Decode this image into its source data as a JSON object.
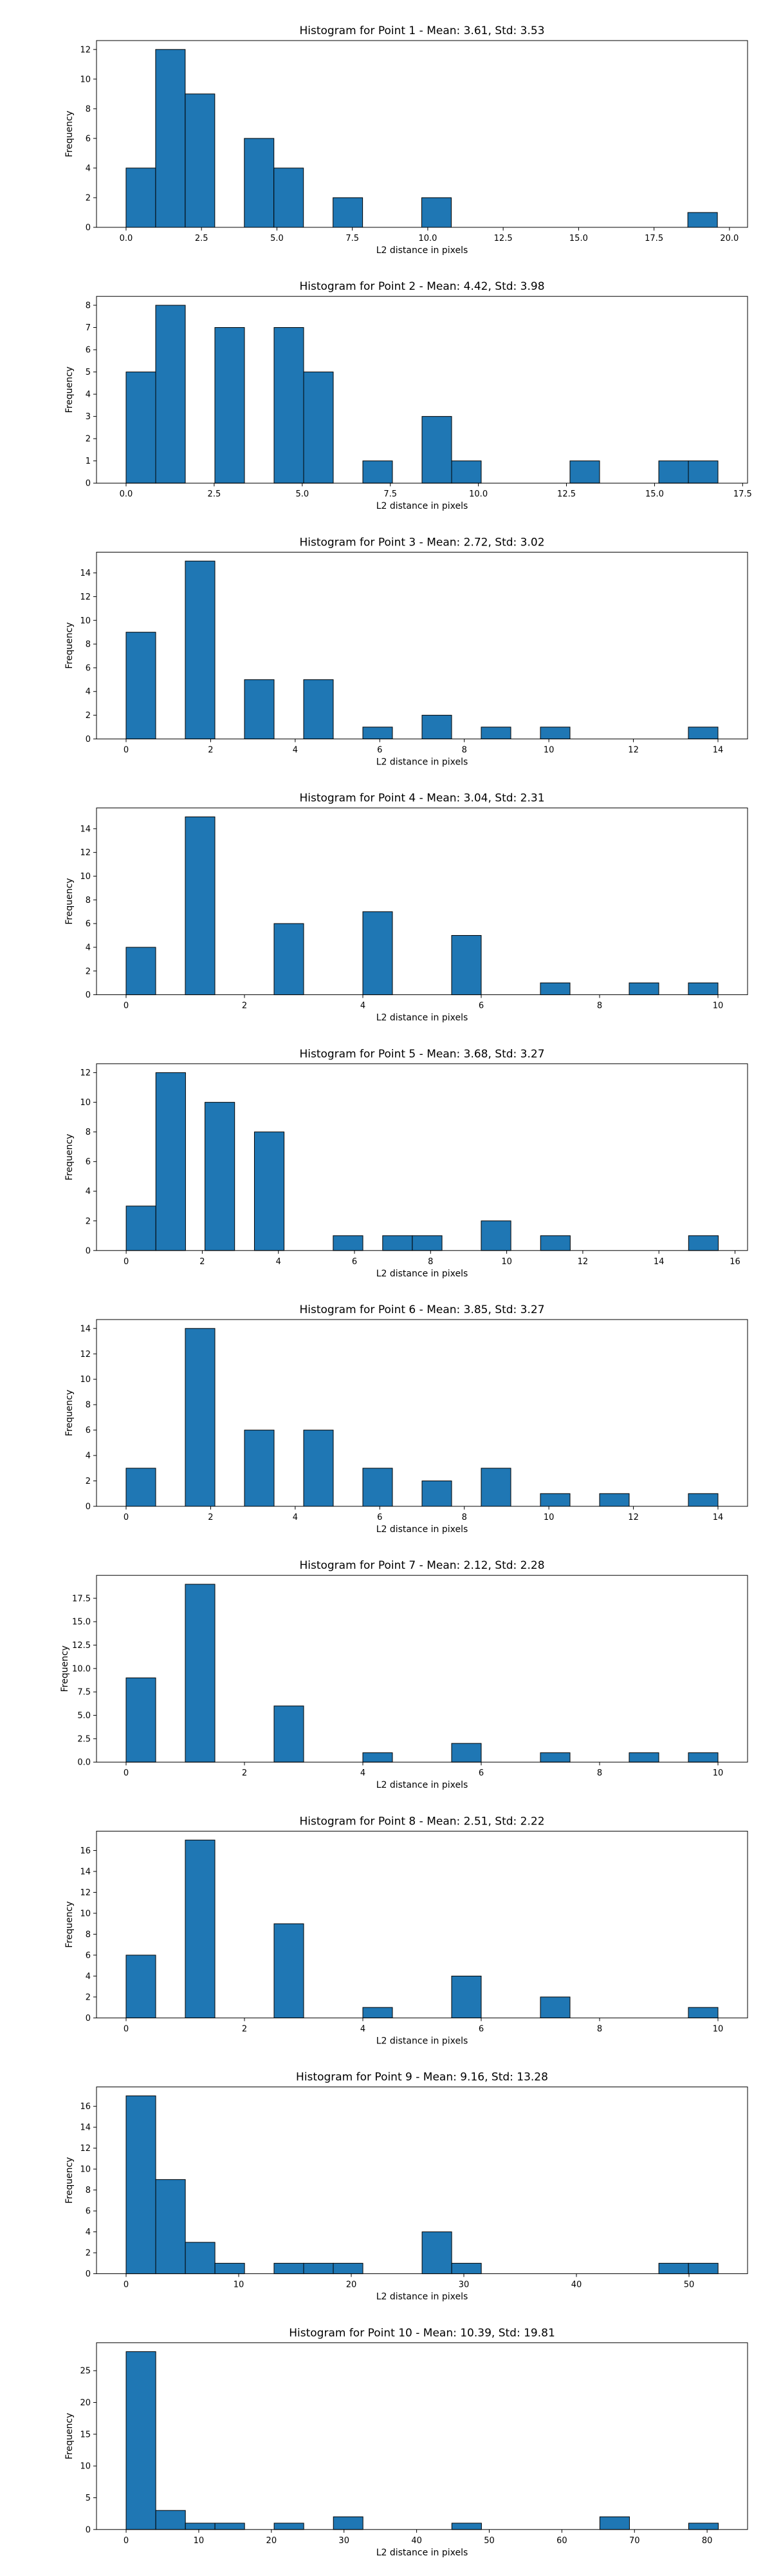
{
  "chart_data": [
    {
      "type": "bar",
      "title": "Histogram for Point 1 - Mean: 3.61, Std: 3.53",
      "xlabel": "L2 distance in pixels",
      "ylabel": "Frequency",
      "xlim": [
        -0.98,
        20.6
      ],
      "ylim": [
        0,
        12.6
      ],
      "xticks": [
        0.0,
        2.5,
        5.0,
        7.5,
        10.0,
        12.5,
        15.0,
        17.5,
        20.0
      ],
      "xtick_labels": [
        "0.0",
        "2.5",
        "5.0",
        "7.5",
        "10.0",
        "12.5",
        "15.0",
        "17.5",
        "20.0"
      ],
      "yticks": [
        0,
        2,
        4,
        6,
        8,
        10,
        12
      ],
      "ytick_labels": [
        "0",
        "2",
        "4",
        "6",
        "8",
        "10",
        "12"
      ],
      "bins": [
        [
          0.0,
          0.98,
          4
        ],
        [
          0.98,
          1.96,
          12
        ],
        [
          1.96,
          2.94,
          9
        ],
        [
          3.92,
          4.9,
          6
        ],
        [
          4.9,
          5.88,
          4
        ],
        [
          6.86,
          7.84,
          2
        ],
        [
          9.8,
          10.78,
          2
        ],
        [
          18.62,
          19.6,
          1
        ]
      ]
    },
    {
      "type": "bar",
      "title": "Histogram for Point 2 - Mean: 4.42, Std: 3.98",
      "xlabel": "L2 distance in pixels",
      "ylabel": "Frequency",
      "xlim": [
        -0.84,
        17.64
      ],
      "ylim": [
        0,
        8.4
      ],
      "xticks": [
        0.0,
        2.5,
        5.0,
        7.5,
        10.0,
        12.5,
        15.0,
        17.5
      ],
      "xtick_labels": [
        "0.0",
        "2.5",
        "5.0",
        "7.5",
        "10.0",
        "12.5",
        "15.0",
        "17.5"
      ],
      "yticks": [
        0,
        1,
        2,
        3,
        4,
        5,
        6,
        7,
        8
      ],
      "ytick_labels": [
        "0",
        "1",
        "2",
        "3",
        "4",
        "5",
        "6",
        "7",
        "8"
      ],
      "bins": [
        [
          0.0,
          0.84,
          5
        ],
        [
          0.84,
          1.68,
          8
        ],
        [
          2.52,
          3.36,
          7
        ],
        [
          4.2,
          5.04,
          7
        ],
        [
          5.04,
          5.88,
          5
        ],
        [
          6.72,
          7.56,
          1
        ],
        [
          8.4,
          9.24,
          3
        ],
        [
          9.24,
          10.08,
          1
        ],
        [
          12.6,
          13.44,
          1
        ],
        [
          15.12,
          15.96,
          1
        ],
        [
          15.96,
          16.8,
          1
        ]
      ]
    },
    {
      "type": "bar",
      "title": "Histogram for Point 3 - Mean: 2.72, Std: 3.02",
      "xlabel": "L2 distance in pixels",
      "ylabel": "Frequency",
      "xlim": [
        -0.7,
        14.7
      ],
      "ylim": [
        0,
        15.75
      ],
      "xticks": [
        0,
        2,
        4,
        6,
        8,
        10,
        12,
        14
      ],
      "xtick_labels": [
        "0",
        "2",
        "4",
        "6",
        "8",
        "10",
        "12",
        "14"
      ],
      "yticks": [
        0,
        2,
        4,
        6,
        8,
        10,
        12,
        14
      ],
      "ytick_labels": [
        "0",
        "2",
        "4",
        "6",
        "8",
        "10",
        "12",
        "14"
      ],
      "bins": [
        [
          0.0,
          0.7,
          9
        ],
        [
          1.4,
          2.1,
          15
        ],
        [
          2.8,
          3.5,
          5
        ],
        [
          4.2,
          4.9,
          5
        ],
        [
          5.6,
          6.3,
          1
        ],
        [
          7.0,
          7.7,
          2
        ],
        [
          8.4,
          9.1,
          1
        ],
        [
          9.8,
          10.5,
          1
        ],
        [
          13.3,
          14.0,
          1
        ]
      ]
    },
    {
      "type": "bar",
      "title": "Histogram for Point 4 - Mean: 3.04, Std: 2.31",
      "xlabel": "L2 distance in pixels",
      "ylabel": "Frequency",
      "xlim": [
        -0.5,
        10.5
      ],
      "ylim": [
        0,
        15.75
      ],
      "xticks": [
        0,
        2,
        4,
        6,
        8,
        10
      ],
      "xtick_labels": [
        "0",
        "2",
        "4",
        "6",
        "8",
        "10"
      ],
      "yticks": [
        0,
        2,
        4,
        6,
        8,
        10,
        12,
        14
      ],
      "ytick_labels": [
        "0",
        "2",
        "4",
        "6",
        "8",
        "10",
        "12",
        "14"
      ],
      "bins": [
        [
          0.0,
          0.5,
          4
        ],
        [
          1.0,
          1.5,
          15
        ],
        [
          2.5,
          3.0,
          6
        ],
        [
          4.0,
          4.5,
          7
        ],
        [
          5.5,
          6.0,
          5
        ],
        [
          7.0,
          7.5,
          1
        ],
        [
          8.5,
          9.0,
          1
        ],
        [
          9.5,
          10.0,
          1
        ]
      ]
    },
    {
      "type": "bar",
      "title": "Histogram for Point 5 - Mean: 3.68, Std: 3.27",
      "xlabel": "L2 distance in pixels",
      "ylabel": "Frequency",
      "xlim": [
        -0.78,
        16.33
      ],
      "ylim": [
        0,
        12.6
      ],
      "xticks": [
        0,
        2,
        4,
        6,
        8,
        10,
        12,
        14,
        16
      ],
      "xtick_labels": [
        "0",
        "2",
        "4",
        "6",
        "8",
        "10",
        "12",
        "14",
        "16"
      ],
      "yticks": [
        0,
        2,
        4,
        6,
        8,
        10,
        12
      ],
      "ytick_labels": [
        "0",
        "2",
        "4",
        "6",
        "8",
        "10",
        "12"
      ],
      "bins": [
        [
          0.0,
          0.78,
          3
        ],
        [
          0.78,
          1.56,
          12
        ],
        [
          2.07,
          2.85,
          10
        ],
        [
          3.37,
          4.15,
          8
        ],
        [
          5.44,
          6.22,
          1
        ],
        [
          6.74,
          7.52,
          1
        ],
        [
          7.52,
          8.3,
          1
        ],
        [
          9.33,
          10.11,
          2
        ],
        [
          10.89,
          11.67,
          1
        ],
        [
          14.78,
          15.56,
          1
        ]
      ]
    },
    {
      "type": "bar",
      "title": "Histogram for Point 6 - Mean: 3.85, Std: 3.27",
      "xlabel": "L2 distance in pixels",
      "ylabel": "Frequency",
      "xlim": [
        -0.7,
        14.7
      ],
      "ylim": [
        0,
        14.7
      ],
      "xticks": [
        0,
        2,
        4,
        6,
        8,
        10,
        12,
        14
      ],
      "xtick_labels": [
        "0",
        "2",
        "4",
        "6",
        "8",
        "10",
        "12",
        "14"
      ],
      "yticks": [
        0,
        2,
        4,
        6,
        8,
        10,
        12,
        14
      ],
      "ytick_labels": [
        "0",
        "2",
        "4",
        "6",
        "8",
        "10",
        "12",
        "14"
      ],
      "bins": [
        [
          0.0,
          0.7,
          3
        ],
        [
          1.4,
          2.1,
          14
        ],
        [
          2.8,
          3.5,
          6
        ],
        [
          4.2,
          4.9,
          6
        ],
        [
          5.6,
          6.3,
          3
        ],
        [
          7.0,
          7.7,
          2
        ],
        [
          8.4,
          9.1,
          3
        ],
        [
          9.8,
          10.5,
          1
        ],
        [
          11.2,
          11.9,
          1
        ],
        [
          13.3,
          14.0,
          1
        ]
      ]
    },
    {
      "type": "bar",
      "title": "Histogram for Point 7 - Mean: 2.12, Std: 2.28",
      "xlabel": "L2 distance in pixels",
      "ylabel": "Frequency",
      "xlim": [
        -0.5,
        10.5
      ],
      "ylim": [
        0,
        19.95
      ],
      "xticks": [
        0,
        2,
        4,
        6,
        8,
        10
      ],
      "xtick_labels": [
        "0",
        "2",
        "4",
        "6",
        "8",
        "10"
      ],
      "yticks": [
        0,
        2.5,
        5,
        7.5,
        10,
        12.5,
        15,
        17.5
      ],
      "ytick_labels": [
        "0.0",
        "2.5",
        "5.0",
        "7.5",
        "10.0",
        "12.5",
        "15.0",
        "17.5"
      ],
      "bins": [
        [
          0.0,
          0.5,
          9
        ],
        [
          1.0,
          1.5,
          19
        ],
        [
          2.5,
          3.0,
          6
        ],
        [
          4.0,
          4.5,
          1
        ],
        [
          5.5,
          6.0,
          2
        ],
        [
          7.0,
          7.5,
          1
        ],
        [
          8.5,
          9.0,
          1
        ],
        [
          9.5,
          10.0,
          1
        ]
      ]
    },
    {
      "type": "bar",
      "title": "Histogram for Point 8 - Mean: 2.51, Std: 2.22",
      "xlabel": "L2 distance in pixels",
      "ylabel": "Frequency",
      "xlim": [
        -0.5,
        10.5
      ],
      "ylim": [
        0,
        17.85
      ],
      "xticks": [
        0,
        2,
        4,
        6,
        8,
        10
      ],
      "xtick_labels": [
        "0",
        "2",
        "4",
        "6",
        "8",
        "10"
      ],
      "yticks": [
        0,
        2,
        4,
        6,
        8,
        10,
        12,
        14,
        16
      ],
      "ytick_labels": [
        "0",
        "2",
        "4",
        "6",
        "8",
        "10",
        "12",
        "14",
        "16"
      ],
      "bins": [
        [
          0.0,
          0.5,
          6
        ],
        [
          1.0,
          1.5,
          17
        ],
        [
          2.5,
          3.0,
          9
        ],
        [
          4.0,
          4.5,
          1
        ],
        [
          5.5,
          6.0,
          4
        ],
        [
          7.0,
          7.5,
          2
        ],
        [
          9.5,
          10.0,
          1
        ]
      ]
    },
    {
      "type": "bar",
      "title": "Histogram for Point 9 - Mean: 9.16, Std: 13.28",
      "xlabel": "L2 distance in pixels",
      "ylabel": "Frequency",
      "xlim": [
        -2.63,
        55.2
      ],
      "ylim": [
        0,
        17.85
      ],
      "xticks": [
        0,
        10,
        20,
        30,
        40,
        50
      ],
      "xtick_labels": [
        "0",
        "10",
        "20",
        "30",
        "40",
        "50"
      ],
      "yticks": [
        0,
        2,
        4,
        6,
        8,
        10,
        12,
        14,
        16
      ],
      "ytick_labels": [
        "0",
        "2",
        "4",
        "6",
        "8",
        "10",
        "12",
        "14",
        "16"
      ],
      "bins": [
        [
          0.0,
          2.63,
          17
        ],
        [
          2.63,
          5.26,
          9
        ],
        [
          5.26,
          7.89,
          3
        ],
        [
          7.89,
          10.52,
          1
        ],
        [
          13.14,
          15.77,
          1
        ],
        [
          15.77,
          18.4,
          1
        ],
        [
          18.4,
          21.03,
          1
        ],
        [
          26.29,
          28.92,
          4
        ],
        [
          28.92,
          31.55,
          1
        ],
        [
          47.32,
          49.95,
          1
        ],
        [
          49.95,
          52.58,
          1
        ]
      ]
    },
    {
      "type": "bar",
      "title": "Histogram for Point 10 - Mean: 10.39, Std: 19.81",
      "xlabel": "L2 distance in pixels",
      "ylabel": "Frequency",
      "xlim": [
        -4.08,
        85.57
      ],
      "ylim": [
        0,
        29.4
      ],
      "xticks": [
        0,
        10,
        20,
        30,
        40,
        50,
        60,
        70,
        80
      ],
      "xtick_labels": [
        "0",
        "10",
        "20",
        "30",
        "40",
        "50",
        "60",
        "70",
        "80"
      ],
      "yticks": [
        0,
        5,
        10,
        15,
        20,
        25
      ],
      "ytick_labels": [
        "0",
        "5",
        "10",
        "15",
        "20",
        "25"
      ],
      "bins": [
        [
          0.0,
          4.08,
          28
        ],
        [
          4.08,
          8.16,
          3
        ],
        [
          8.16,
          12.23,
          1
        ],
        [
          12.23,
          16.31,
          1
        ],
        [
          20.38,
          24.46,
          1
        ],
        [
          28.54,
          32.61,
          2
        ],
        [
          44.85,
          48.93,
          1
        ],
        [
          65.23,
          69.31,
          2
        ],
        [
          77.46,
          81.54,
          1
        ]
      ]
    }
  ]
}
